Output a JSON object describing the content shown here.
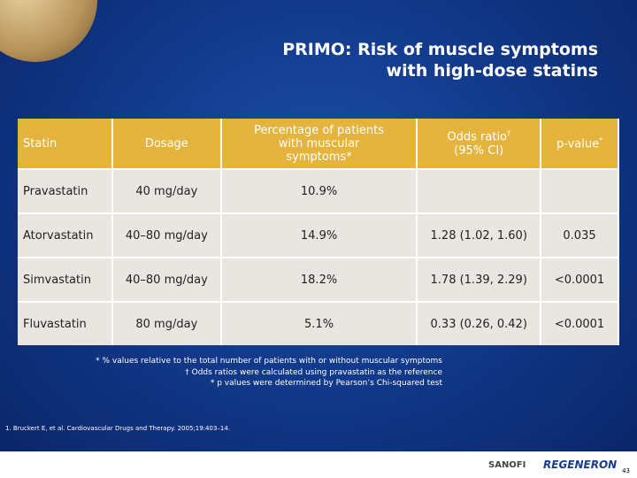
{
  "title": {
    "line1": "PRIMO: Risk of muscle symptoms",
    "line2": "with high-dose statins"
  },
  "table": {
    "header": {
      "statin": "Statin",
      "dosage": "Dosage",
      "percentage": "Percentage of patients with muscular symptoms*",
      "odds": "Odds ratio",
      "odds_mark": "†",
      "odds_ci": "(95% CI)",
      "pvalue": "p-value",
      "pvalue_mark": "*"
    },
    "rows": [
      [
        "Pravastatin",
        "40 mg/day",
        "10.9%",
        null,
        null
      ],
      [
        "Atorvastatin",
        "40–80 mg/day",
        "14.9%",
        "1.28 (1.02, 1.60)",
        "0.035"
      ],
      [
        "Simvastatin",
        "40–80 mg/day",
        "18.2%",
        "1.78 (1.39, 2.29)",
        "<0.0001"
      ],
      [
        "Fluvastatin",
        "80 mg/day",
        "5.1%",
        "0.33 (0.26, 0.42)",
        "<0.0001"
      ]
    ]
  },
  "footnotes": [
    "* % values relative to the total number of patients with or without muscular symptoms",
    "† Odds ratios were calculated using pravastatin as the reference",
    "* p values were determined by Pearson’s Chi-squared test"
  ],
  "reference": "1. Bruckert E, et al. Cardiovascular Drugs and Therapy. 2005;19:403–14.",
  "footer": {
    "logo1": "SANOFI",
    "logo2": "REGENERON",
    "page": "43"
  }
}
